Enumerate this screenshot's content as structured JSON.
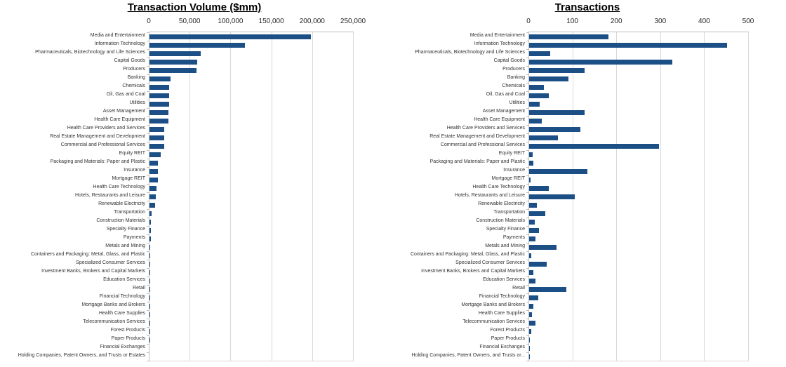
{
  "colors": {
    "bar": "#1b4f86",
    "gridline": "#d9d9d9",
    "axis_line": "#bfbfbf",
    "title": "#000000",
    "tick_label": "#262626",
    "category_label": "#333333"
  },
  "chart_data": [
    {
      "type": "bar",
      "orientation": "horizontal",
      "title": "Transaction Volume ($mm)",
      "xlabel": "",
      "ylabel": "",
      "xlim": [
        0,
        250000
      ],
      "x_ticks": [
        "0",
        "50,000",
        "100,000",
        "150,000",
        "200,000",
        "250,000"
      ],
      "grid": true,
      "legend": false,
      "categories": [
        "Media and Entertainment",
        "Information Technology",
        "Pharmaceuticals, Biotechnology and Life Sciences",
        "Capital Goods",
        "Producers",
        "Banking",
        "Chemicals",
        "Oil, Gas and Coal",
        "Utilities",
        "Asset Management",
        "Health Care Equipment",
        "Health Care Providers and Services",
        "Real Estate Management and Development",
        "Commercial and Professional Services",
        "Equity REIT",
        "Packaging and Materials: Paper and Plastic",
        "Insurance",
        "Mortgage REIT",
        "Health Care Technology",
        "Hotels, Restaurants and Leisure",
        "Renewable Electricity",
        "Transportation",
        "Construction Materials",
        "Specialty Finance",
        "Payments",
        "Metals and Mining",
        "Containers and Packaging: Metal, Glass, and Plastic",
        "Specialized Consumer Services",
        "Investment Banks, Brokers and Capital Markets",
        "Education Services",
        "Retail",
        "Financial Technology",
        "Mortgage Banks and Brokers",
        "Health Care Supplies",
        "Telecommunication Services",
        "Forest Products",
        "Paper Products",
        "Financial Exchanges",
        "Holding Companies, Patent Owners, and Trusts or Estates"
      ],
      "values": [
        197500,
        116800,
        62800,
        58400,
        57200,
        25500,
        24000,
        23700,
        24000,
        23400,
        23200,
        17800,
        17900,
        17700,
        14000,
        10100,
        10000,
        9900,
        8600,
        7500,
        7100,
        2900,
        2100,
        2100,
        2100,
        1100,
        900,
        1000,
        400,
        300,
        250,
        250,
        200,
        150,
        150,
        100,
        80,
        60,
        30
      ]
    },
    {
      "type": "bar",
      "orientation": "horizontal",
      "title": "Transactions",
      "xlabel": "",
      "ylabel": "",
      "xlim": [
        0,
        500
      ],
      "x_ticks": [
        "0",
        "100",
        "200",
        "300",
        "400",
        "500"
      ],
      "grid": true,
      "legend": false,
      "categories": [
        "Media and Entertainment",
        "Information Technology",
        "Pharmaceuticals, Biotechnology and Life Sciences",
        "Capital Goods",
        "Producers",
        "Banking",
        "Chemicals",
        "Oil, Gas and Coal",
        "Utilities",
        "Asset Management",
        "Health Care Equipment",
        "Health Care Providers and Services",
        "Real Estate Management and Development",
        "Commercial and Professional Services",
        "Equity REIT",
        "Packaging and Materials: Paper and Plastic",
        "Insurance",
        "Mortgage REIT",
        "Health Care Technology",
        "Hotels, Restaurants and Leisure",
        "Renewable Electricity",
        "Transportation",
        "Construction Materials",
        "Specialty Finance",
        "Payments",
        "Metals and Mining",
        "Containers and Packaging: Metal, Glass, and Plastic",
        "Specialized Consumer Services",
        "Investment Banks, Brokers and Capital Markets",
        "Education Services",
        "Retail",
        "Financial Technology",
        "Mortgage Banks and Brokers",
        "Health Care Supplies",
        "Telecommunication Services",
        "Forest Products",
        "Paper Products",
        "Financial Exchanges",
        "Holding Companies, Patent Owners, and Trusts or..."
      ],
      "values": [
        180,
        450,
        48,
        326,
        126,
        89,
        33,
        44,
        24,
        126,
        28,
        116,
        65,
        296,
        8,
        10,
        132,
        3,
        45,
        104,
        18,
        36,
        13,
        23,
        14,
        62,
        4,
        40,
        10,
        14,
        85,
        20,
        10,
        7,
        15,
        5,
        2,
        2,
        2
      ]
    }
  ]
}
